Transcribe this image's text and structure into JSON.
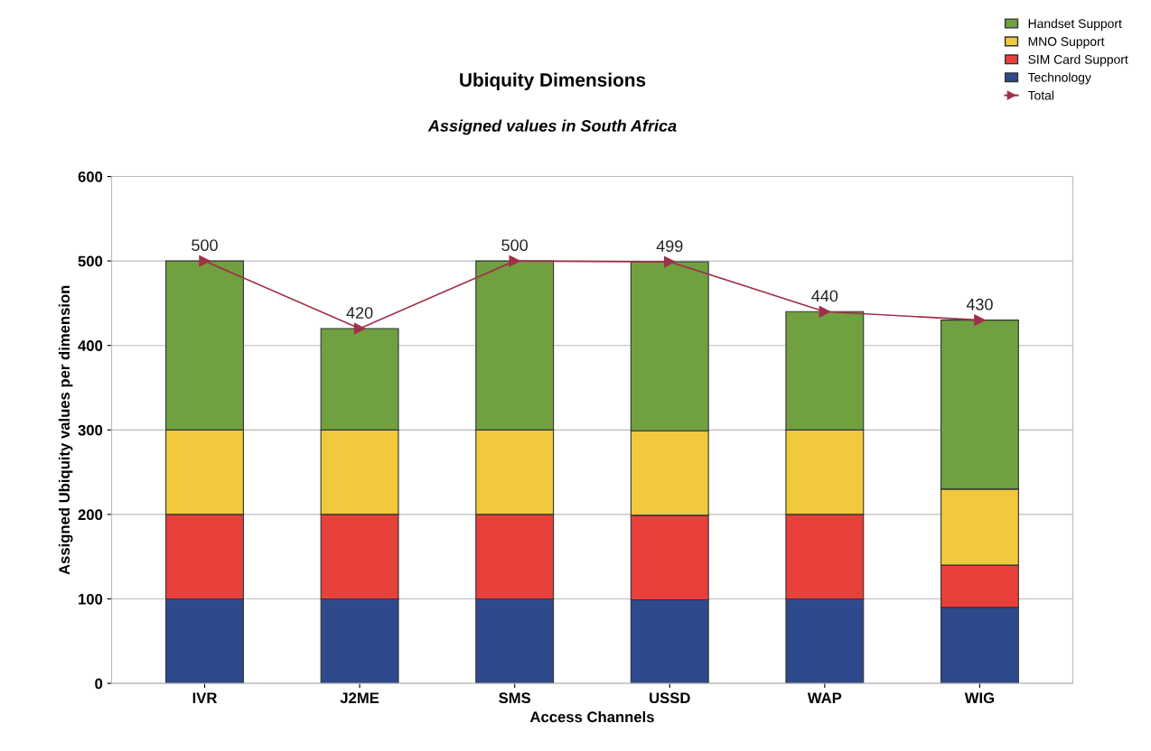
{
  "chart_data": {
    "type": "bar",
    "title": "Ubiquity Dimensions",
    "subtitle": "Assigned values in South Africa",
    "xlabel": "Access Channels",
    "ylabel": "Assigned Ubiquity values per dimension",
    "categories": [
      "IVR",
      "J2ME",
      "SMS",
      "USSD",
      "WAP",
      "WIG"
    ],
    "stacked": true,
    "series": [
      {
        "name": "Technology",
        "color": "#2e4a8c",
        "values": [
          100,
          100,
          100,
          99,
          100,
          90
        ]
      },
      {
        "name": "SIM Card Support",
        "color": "#e8403a",
        "values": [
          100,
          100,
          100,
          100,
          100,
          50
        ]
      },
      {
        "name": "MNO Support",
        "color": "#f0c93c",
        "values": [
          100,
          100,
          100,
          100,
          100,
          90
        ]
      },
      {
        "name": "Handset Support",
        "color": "#70a040",
        "values": [
          200,
          120,
          200,
          200,
          140,
          200
        ]
      },
      {
        "name": "Total",
        "type": "line",
        "color": "#a0304a",
        "marker": "triangle",
        "values": [
          500,
          420,
          500,
          499,
          440,
          430
        ],
        "value_labels": [
          "500",
          "420",
          "500",
          "499",
          "440",
          "430"
        ]
      }
    ],
    "ylim": [
      0,
      600
    ],
    "yticks": [
      0,
      100,
      200,
      300,
      400,
      500,
      600
    ],
    "grid": "y",
    "legend": "top right"
  }
}
